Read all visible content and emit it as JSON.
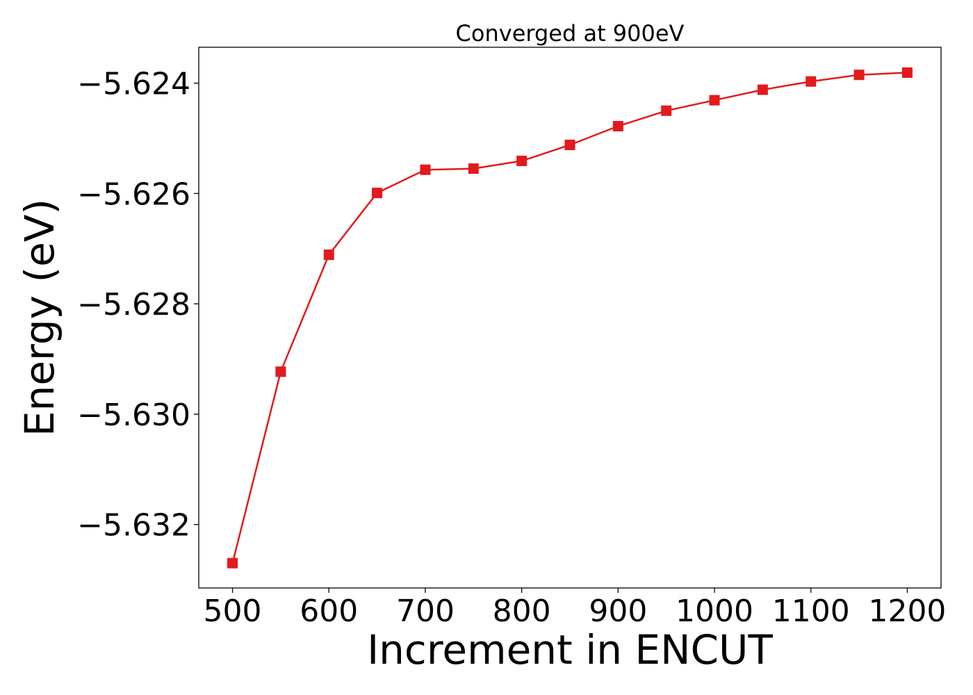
{
  "chart_data": {
    "type": "line",
    "title": "Converged at 900eV",
    "xlabel": "Increment in ENCUT",
    "ylabel": "Energy (eV)",
    "xlim": [
      465,
      1235
    ],
    "ylim": [
      -5.63315,
      -5.62335
    ],
    "x_ticks": [
      500,
      600,
      700,
      800,
      900,
      1000,
      1100,
      1200
    ],
    "x_tick_labels": [
      "500",
      "600",
      "700",
      "800",
      "900",
      "1000",
      "1100",
      "1200"
    ],
    "y_ticks": [
      -5.624,
      -5.626,
      -5.628,
      -5.63,
      -5.632
    ],
    "y_tick_labels": [
      "−5.624",
      "−5.626",
      "−5.628",
      "−5.630",
      "−5.632"
    ],
    "grid": false,
    "series": [
      {
        "color": "#e31a1c",
        "marker": "square",
        "x": [
          500,
          550,
          600,
          650,
          700,
          750,
          800,
          850,
          900,
          950,
          1000,
          1050,
          1100,
          1150,
          1200
        ],
        "y": [
          -5.6327,
          -5.62923,
          -5.62711,
          -5.62599,
          -5.62557,
          -5.62555,
          -5.62541,
          -5.62512,
          -5.62478,
          -5.6245,
          -5.62431,
          -5.62412,
          -5.62397,
          -5.62385,
          -5.62381
        ]
      }
    ]
  }
}
